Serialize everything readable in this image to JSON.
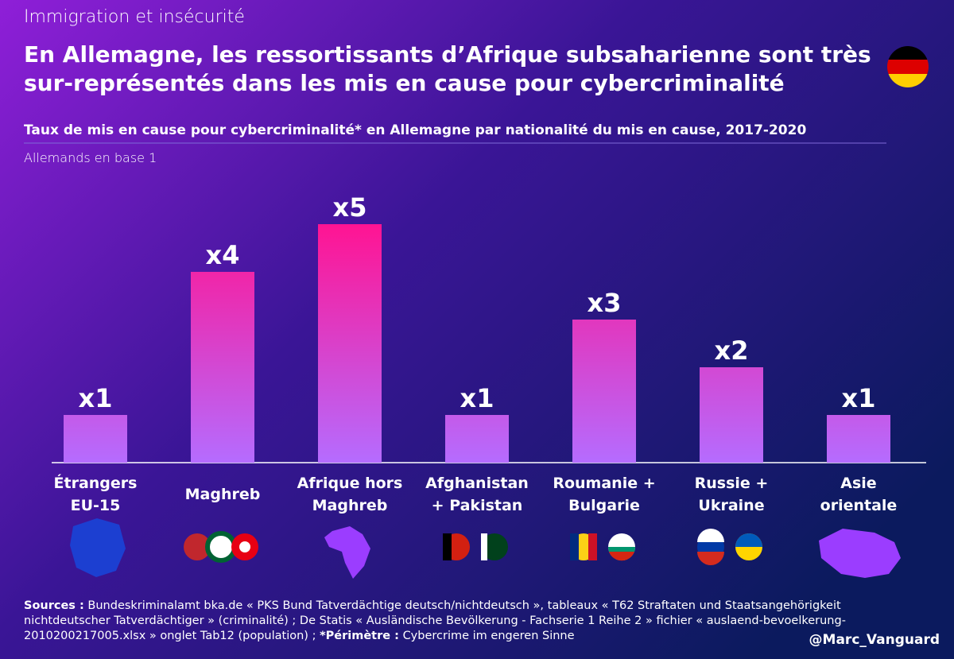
{
  "kicker": "Immigration et insécurité",
  "chart_data": {
    "type": "bar",
    "title": [
      "En Allemagne, les ressortissants d’Afrique subsaharienne sont très",
      "sur-représentés dans les mis en cause pour cybercriminalité"
    ],
    "subtitle": "Taux de mis en cause pour cybercriminalité* en Allemagne par nationalité du mis en cause, 2017-2020",
    "axis_note": "Allemands en base 1",
    "categories": [
      "Étrangers\nEU-15",
      "Maghreb",
      "Afrique hors\nMaghreb",
      "Afghanistan\n+ Pakistan",
      "Roumanie +\nBulgarie",
      "Russie +\nUkraine",
      "Asie\norientale"
    ],
    "values": [
      1,
      4,
      5,
      1,
      3,
      2,
      1
    ],
    "value_labels": [
      "x1",
      "x4",
      "x5",
      "x1",
      "x3",
      "x2",
      "x1"
    ],
    "color_top": "#ff1493",
    "color_bottom": "#b56cff"
  },
  "sources": {
    "label": "Sources :",
    "lines": [
      "Bundeskriminalamt bka.de « PKS Bund Tatverdächtige deutsch/nichtdeutsch », tableaux « T62 Straftaten und Staatsangehörigkeit",
      "nichtdeutscher Tatverdächtiger » (criminalité) ; De Statis « Ausländische Bevölkerung - Fachserie 1 Reihe 2 » fichier « auslaend-bevoelkerung-",
      "2010200217005.xlsx » onglet Tab12 (population) ;"
    ],
    "perimetre_label": "*Périmètre :",
    "perimetre_text": "Cybercrime im engeren Sinne"
  },
  "handle": "@Marc_Vanguard"
}
